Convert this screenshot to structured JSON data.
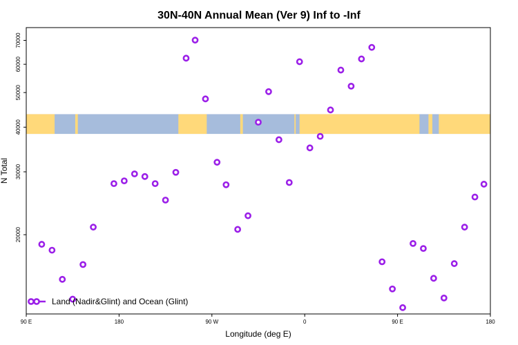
{
  "chart_data": {
    "type": "scatter",
    "title": "30N-40N Annual Mean (Ver 9)   Inf to -Inf",
    "xlabel": "Longitude (deg E)",
    "ylabel": "N Total",
    "y_scale": "log",
    "xlim": [
      0,
      360
    ],
    "ylim": [
      12000,
      76000
    ],
    "grid": false,
    "legend_position": "bottom-left",
    "x_ticks": [
      {
        "value": 0,
        "label": "90 E"
      },
      {
        "value": 72,
        "label": "180"
      },
      {
        "value": 144,
        "label": "90 W"
      },
      {
        "value": 216,
        "label": "0"
      },
      {
        "value": 288,
        "label": "90 E"
      },
      {
        "value": 360,
        "label": "180"
      }
    ],
    "y_ticks": [
      {
        "value": 20000,
        "label": "20000"
      },
      {
        "value": 30000,
        "label": "30000"
      },
      {
        "value": 40000,
        "label": "40000"
      },
      {
        "value": 50000,
        "label": "50000"
      },
      {
        "value": 60000,
        "label": "60000"
      },
      {
        "value": 70000,
        "label": "70000"
      }
    ],
    "map_strip": {
      "y_range": [
        38300,
        43500
      ],
      "ocean_color": "#a6bcdc",
      "land_color": "#ffd97a",
      "land_longitude_bands": [
        [
          0,
          22
        ],
        [
          38,
          40
        ],
        [
          118,
          140
        ],
        [
          166,
          168
        ],
        [
          208,
          209
        ],
        [
          212,
          305
        ],
        [
          312,
          315
        ],
        [
          320,
          360
        ]
      ]
    },
    "series": [
      {
        "name": "Land (Nadir&Glint) and Ocean (Glint)",
        "color": "#9b1fe8",
        "marker": "open-circle",
        "x": [
          12,
          20,
          28,
          36,
          44,
          52,
          68,
          76,
          84,
          92,
          100,
          108,
          116,
          124,
          131,
          139,
          148,
          155,
          164,
          172,
          180,
          188,
          196,
          204,
          212,
          220,
          228,
          236,
          244,
          252,
          260,
          268,
          276,
          284,
          292,
          300,
          308,
          316,
          324,
          332,
          340,
          348,
          355
        ],
        "y": [
          18800,
          18100,
          15000,
          13200,
          16500,
          21000,
          27800,
          28300,
          29600,
          29100,
          27800,
          25000,
          29900,
          62400,
          70100,
          48000,
          31900,
          27600,
          20700,
          22600,
          41300,
          50300,
          36900,
          28000,
          61000,
          35000,
          37700,
          44700,
          57800,
          52100,
          62100,
          66900,
          16800,
          14100,
          12500,
          18900,
          18300,
          15100,
          13300,
          16600,
          21000,
          25500,
          27700
        ]
      }
    ]
  }
}
